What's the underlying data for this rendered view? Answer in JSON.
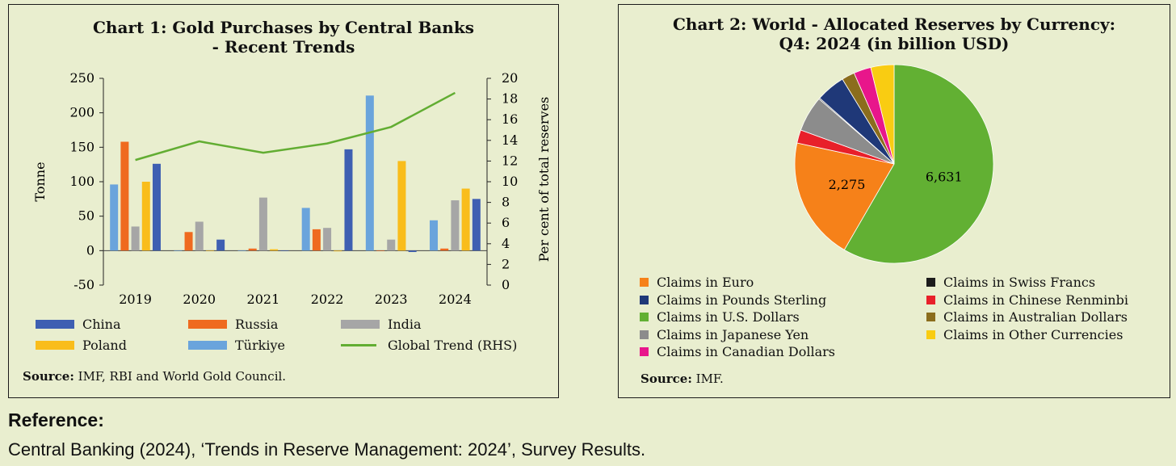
{
  "chart_data": [
    {
      "type": "bar",
      "title_line1": "Chart 1: Gold Purchases by Central Banks",
      "title_line2": "- Recent Trends",
      "ylabel": "Tonne",
      "y2label": "Per cent of total reserves",
      "ylim": [
        -50,
        250
      ],
      "y2lim": [
        0,
        20
      ],
      "yticks": [
        "250",
        "200",
        "150",
        "100",
        "50",
        "0",
        "-50"
      ],
      "y2ticks": [
        "20",
        "18",
        "16",
        "14",
        "12",
        "10",
        "8",
        "6",
        "4",
        "2",
        "0"
      ],
      "categories": [
        "2019",
        "2020",
        "2021",
        "2022",
        "2023",
        "2024"
      ],
      "series": [
        {
          "name": "Türkiye",
          "color": "#6aa4dc",
          "values": [
            96,
            0,
            0,
            62,
            225,
            44
          ]
        },
        {
          "name": "Russia",
          "color": "#ef6a1f",
          "values": [
            158,
            27,
            3,
            31,
            0,
            3
          ]
        },
        {
          "name": "India",
          "color": "#a6a6a6",
          "values": [
            35,
            42,
            77,
            33,
            16,
            73
          ]
        },
        {
          "name": "Poland",
          "color": "#f9bd1b",
          "values": [
            100,
            0,
            2,
            -1,
            130,
            90
          ]
        },
        {
          "name": "China",
          "color": "#3e5fb2",
          "values": [
            126,
            16,
            0,
            147,
            -2,
            75
          ]
        }
      ],
      "line": {
        "name": "Global Trend (RHS)",
        "color": "#62ad32",
        "values": [
          12.1,
          13.9,
          12.8,
          13.7,
          15.3,
          18.6
        ]
      },
      "legend": [
        {
          "name": "China",
          "color": "#3e5fb2",
          "kind": "bar"
        },
        {
          "name": "Russia",
          "color": "#ef6a1f",
          "kind": "bar"
        },
        {
          "name": "India",
          "color": "#a6a6a6",
          "kind": "bar"
        },
        {
          "name": "Poland",
          "color": "#f9bd1b",
          "kind": "bar"
        },
        {
          "name": "Türkiye",
          "color": "#6aa4dc",
          "kind": "bar"
        },
        {
          "name": "Global Trend (RHS)",
          "color": "#62ad32",
          "kind": "line"
        }
      ],
      "source_label": "Source:",
      "source_text": " IMF, RBI and World Gold Council."
    },
    {
      "type": "pie",
      "title_line1": "Chart 2: World - Allocated Reserves by Currency:",
      "title_line2": "Q4: 2024 (in billion USD)",
      "slices": [
        {
          "name": "Claims in U.S. Dollars",
          "value": 6631,
          "color": "#62b033",
          "label": "6,631"
        },
        {
          "name": "Claims in Euro",
          "value": 2275,
          "color": "#f68119",
          "label": "2,275"
        },
        {
          "name": "Claims in Chinese Renminbi",
          "value": 245,
          "color": "#e8202a",
          "label": ""
        },
        {
          "name": "Claims in Japanese Yen",
          "value": 660,
          "color": "#8c8c8c",
          "label": ""
        },
        {
          "name": "Claims in Swiss Francs",
          "value": 20,
          "color": "#1c1c1c",
          "label": ""
        },
        {
          "name": "Claims in Pounds Sterling",
          "value": 540,
          "color": "#1f3878",
          "label": ""
        },
        {
          "name": "Claims in Australian Dollars",
          "value": 240,
          "color": "#8b6d1d",
          "label": ""
        },
        {
          "name": "Claims in Canadian Dollars",
          "value": 320,
          "color": "#e8168b",
          "label": ""
        },
        {
          "name": "Claims in Other Currencies",
          "value": 430,
          "color": "#f9cc12",
          "label": ""
        }
      ],
      "legend_left": [
        {
          "name": "Claims in Euro",
          "color": "#f68119"
        },
        {
          "name": "Claims in Pounds Sterling",
          "color": "#1f3878"
        },
        {
          "name": "Claims in U.S. Dollars",
          "color": "#62b033"
        },
        {
          "name": "Claims in Japanese Yen",
          "color": "#8c8c8c"
        },
        {
          "name": "Claims in Canadian Dollars",
          "color": "#e8168b"
        }
      ],
      "legend_right": [
        {
          "name": "Claims in Swiss Francs",
          "color": "#1c1c1c"
        },
        {
          "name": "Claims in Chinese Renminbi",
          "color": "#e8202a"
        },
        {
          "name": "Claims in Australian Dollars",
          "color": "#8b6d1d"
        },
        {
          "name": "Claims in Other Currencies",
          "color": "#f9cc12"
        }
      ],
      "source_label": "Source:",
      "source_text": " IMF."
    }
  ],
  "reference": {
    "heading": "Reference:",
    "text": "Central Banking (2024), ‘Trends in Reserve Management: 2024’, Survey Results."
  }
}
